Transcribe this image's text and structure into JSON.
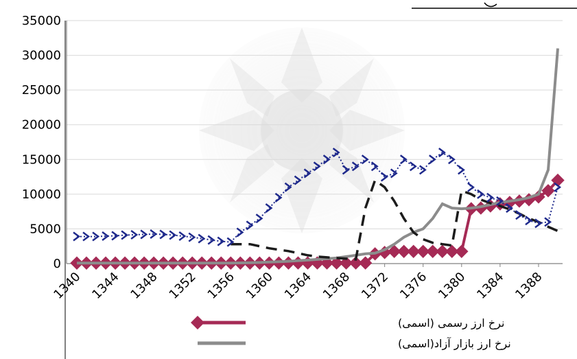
{
  "chart_data": {
    "type": "line",
    "title": "",
    "xlabel": "",
    "ylabel": "",
    "ylim": [
      0,
      35000
    ],
    "yticks": [
      "0",
      "5000",
      "10000",
      "15000",
      "20000",
      "25000",
      "30000",
      "35000"
    ],
    "xticks": [
      "1340",
      "1344",
      "1348",
      "1352",
      "1356",
      "1360",
      "1364",
      "1368",
      "1372",
      "1376",
      "1380",
      "1384",
      "1388"
    ],
    "grid": true,
    "legend_position": "bottom",
    "x": [
      1340,
      1341,
      1342,
      1343,
      1344,
      1345,
      1346,
      1347,
      1348,
      1349,
      1350,
      1351,
      1352,
      1353,
      1354,
      1355,
      1356,
      1357,
      1358,
      1359,
      1360,
      1361,
      1362,
      1363,
      1364,
      1365,
      1366,
      1367,
      1368,
      1369,
      1370,
      1371,
      1372,
      1373,
      1374,
      1375,
      1376,
      1377,
      1378,
      1379,
      1380,
      1381,
      1382,
      1383,
      1384,
      1385,
      1386,
      1387,
      1388,
      1389,
      1390
    ],
    "series": [
      {
        "name": "نرخ ارز رسمی (اسمی)",
        "color": "#A52A55",
        "style": "solid-diamond",
        "values": [
          75,
          75,
          75,
          75,
          75,
          75,
          75,
          75,
          75,
          75,
          75,
          75,
          75,
          75,
          75,
          75,
          75,
          75,
          75,
          75,
          80,
          80,
          85,
          90,
          90,
          90,
          90,
          90,
          90,
          90,
          90,
          1400,
          1600,
          1750,
          1750,
          1750,
          1750,
          1750,
          1750,
          1750,
          1750,
          7900,
          8000,
          8300,
          8600,
          8800,
          9000,
          9200,
          9600,
          10500,
          12000
        ]
      },
      {
        "name": "نرخ ارز بازار آزاد(اسمی)",
        "color": "#8C8C8C",
        "style": "solid",
        "values": [
          75,
          75,
          75,
          75,
          75,
          75,
          75,
          75,
          75,
          75,
          75,
          75,
          75,
          75,
          75,
          75,
          80,
          100,
          120,
          160,
          220,
          280,
          340,
          420,
          500,
          600,
          700,
          800,
          1000,
          1200,
          1400,
          1500,
          2000,
          2800,
          3800,
          4500,
          5000,
          6500,
          8600,
          8000,
          7900,
          8000,
          8200,
          8500,
          8800,
          9000,
          9200,
          9500,
          10000,
          13500,
          31000
        ]
      },
      {
        "name": "",
        "color": "#1C1C1C",
        "style": "dashed",
        "values": [
          null,
          null,
          null,
          null,
          null,
          null,
          null,
          null,
          null,
          null,
          null,
          null,
          null,
          null,
          null,
          null,
          2800,
          2800,
          2800,
          2500,
          2200,
          2000,
          1800,
          1500,
          1200,
          1000,
          900,
          800,
          700,
          600,
          8000,
          12000,
          11000,
          9000,
          6500,
          4500,
          3500,
          3000,
          2800,
          2600,
          10500,
          10000,
          9200,
          8700,
          8300,
          7800,
          7200,
          6500,
          6000,
          5300,
          4700
        ]
      },
      {
        "name": "",
        "color": "#1F2A8C",
        "style": "dotted-arrow",
        "values": [
          3900,
          3900,
          3900,
          3950,
          4000,
          4100,
          4150,
          4200,
          4250,
          4200,
          4100,
          3950,
          3800,
          3600,
          3400,
          3200,
          3100,
          4500,
          5500,
          6500,
          8000,
          9500,
          11000,
          12000,
          13000,
          14000,
          15000,
          16000,
          13500,
          14000,
          15000,
          14000,
          12500,
          13000,
          15000,
          14000,
          13500,
          15000,
          16000,
          15000,
          13500,
          11000,
          10000,
          9500,
          9000,
          8000,
          7000,
          6200,
          5800,
          6000,
          11000
        ]
      }
    ]
  }
}
